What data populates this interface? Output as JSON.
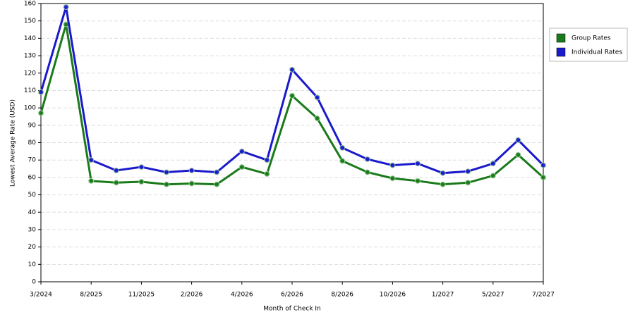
{
  "chart_data": {
    "type": "line",
    "x_label": "Month of Check In",
    "y_label": "Lowest Average Rate (USD)",
    "categories": [
      "3/2024",
      null,
      "8/2025",
      null,
      "11/2025",
      null,
      "2/2026",
      null,
      "4/2026",
      null,
      "6/2026",
      null,
      "8/2026",
      null,
      "10/2026",
      null,
      "1/2027",
      null,
      "5/2027",
      null,
      "7/2027"
    ],
    "series": [
      {
        "name": "Group Rates",
        "color": "#1a7a1a",
        "values": [
          97,
          148,
          58,
          57,
          57.5,
          56,
          56.5,
          56,
          66,
          62,
          107,
          94,
          69.5,
          63,
          59.5,
          58,
          56,
          57,
          61,
          73,
          60
        ]
      },
      {
        "name": "Individual Rates",
        "color": "#1a1acc",
        "values": [
          109,
          158,
          70,
          64,
          66,
          63,
          64,
          63,
          75,
          70,
          122,
          106,
          77,
          70.5,
          67,
          68,
          62.5,
          63.5,
          68,
          81.5,
          67
        ]
      }
    ],
    "ylim": [
      0,
      160
    ],
    "yticks": [
      0,
      10,
      20,
      30,
      40,
      50,
      60,
      70,
      80,
      90,
      100,
      110,
      120,
      130,
      140,
      150,
      160
    ],
    "grid": true,
    "legend": "top-right"
  }
}
